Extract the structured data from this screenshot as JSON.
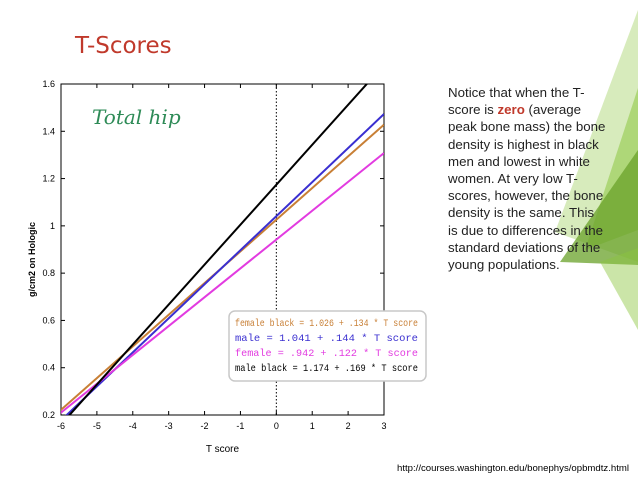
{
  "slide": {
    "title": "T-Scores",
    "notes": {
      "before": "Notice that when the T-score is ",
      "highlight": "zero",
      "after": " (average peak bone mass) the bone density is highest in black men and lowest in white women. At very low T-scores, however, the bone density is the same. This is due to differences in the standard deviations of the young populations."
    },
    "source": "http://courses.washington.edu/bonephys/opbmdtz.html"
  },
  "colors": {
    "title": "#c0392b",
    "highlight": "#c0392b",
    "green_accent": "#8cc63f",
    "green_dark": "#6aa12a"
  },
  "chart_data": {
    "type": "line",
    "annotation": "Total hip",
    "xlabel": "T score",
    "ylabel": "g/cm2 on Hologic",
    "xlim": [
      -6,
      3
    ],
    "ylim": [
      0.2,
      1.6
    ],
    "xticks": [
      -6,
      -5,
      -4,
      -3,
      -2,
      -1,
      0,
      1,
      2,
      3
    ],
    "yticks": [
      0.2,
      0.4,
      0.6,
      0.8,
      1,
      1.2,
      1.4,
      1.6
    ],
    "reference_line_x": 0,
    "grid": false,
    "legend_position": "bottom-center",
    "series": [
      {
        "name": "female black = 1.026 + .134 * T score",
        "intercept": 1.026,
        "slope": 0.134,
        "color": "#c87f35"
      },
      {
        "name": "male = 1.041 + .144 * T score",
        "intercept": 1.041,
        "slope": 0.144,
        "color": "#3a2fd0"
      },
      {
        "name": "female = .942 + .122 * T score",
        "intercept": 0.942,
        "slope": 0.122,
        "color": "#e23be0"
      },
      {
        "name": "male black = 1.174 + .169 * T score",
        "intercept": 1.174,
        "slope": 0.169,
        "color": "#000000"
      }
    ]
  }
}
